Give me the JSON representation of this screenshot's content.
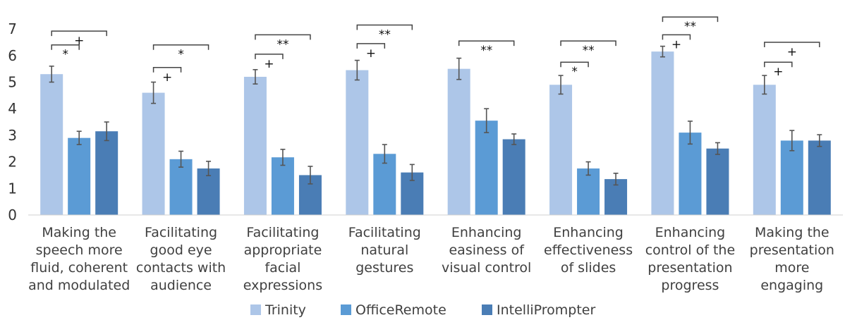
{
  "chart_data": {
    "type": "bar",
    "title": "",
    "xlabel": "",
    "ylabel": "",
    "ylim": [
      0,
      7
    ],
    "yticks": [
      0,
      1,
      2,
      3,
      4,
      5,
      6,
      7
    ],
    "grid": false,
    "legend_position": "bottom",
    "categories": [
      [
        "Making the",
        "speech more",
        "fluid, coherent",
        "and modulated"
      ],
      [
        "Facilitating",
        "good eye",
        "contacts with",
        "audience"
      ],
      [
        "Facilitating",
        "appropriate",
        "facial",
        "expressions"
      ],
      [
        "Facilitating",
        "natural",
        "gestures"
      ],
      [
        "Enhancing",
        "easiness of",
        "visual control"
      ],
      [
        "Enhancing",
        "effectiveness",
        "of slides"
      ],
      [
        "Enhancing",
        "control of the",
        "presentation",
        "progress"
      ],
      [
        "Making the",
        "presentation",
        "more",
        "engaging"
      ]
    ],
    "series": [
      {
        "name": "Trinity",
        "color": "#adc6e8",
        "values": [
          5.3,
          4.6,
          5.2,
          5.45,
          5.5,
          4.9,
          6.15,
          4.9
        ],
        "errors": [
          0.3,
          0.4,
          0.27,
          0.37,
          0.4,
          0.35,
          0.2,
          0.35
        ]
      },
      {
        "name": "OfficeRemote",
        "color": "#5b9bd5",
        "values": [
          2.9,
          2.1,
          2.17,
          2.3,
          3.55,
          1.75,
          3.1,
          2.8
        ],
        "errors": [
          0.25,
          0.3,
          0.3,
          0.35,
          0.45,
          0.25,
          0.43,
          0.38
        ]
      },
      {
        "name": "IntelliPrompter",
        "color": "#4a7db5",
        "values": [
          3.15,
          1.75,
          1.5,
          1.6,
          2.85,
          1.35,
          2.5,
          2.8
        ],
        "errors": [
          0.35,
          0.27,
          0.33,
          0.3,
          0.2,
          0.22,
          0.22,
          0.22
        ]
      }
    ],
    "significance": [
      {
        "group": 0,
        "from": 0,
        "to": 1,
        "level": 6.4,
        "label": "*"
      },
      {
        "group": 0,
        "from": 0,
        "to": 2,
        "level": 6.92,
        "label": "+"
      },
      {
        "group": 1,
        "from": 0,
        "to": 1,
        "level": 5.55,
        "label": "+"
      },
      {
        "group": 1,
        "from": 0,
        "to": 2,
        "level": 6.4,
        "label": "*"
      },
      {
        "group": 2,
        "from": 0,
        "to": 1,
        "level": 6.05,
        "label": "+"
      },
      {
        "group": 2,
        "from": 0,
        "to": 2,
        "level": 6.78,
        "label": "**"
      },
      {
        "group": 3,
        "from": 0,
        "to": 1,
        "level": 6.45,
        "label": "+"
      },
      {
        "group": 3,
        "from": 0,
        "to": 2,
        "level": 7.15,
        "label": "**"
      },
      {
        "group": 4,
        "from": 0,
        "to": 2,
        "level": 6.55,
        "label": "**"
      },
      {
        "group": 5,
        "from": 0,
        "to": 1,
        "level": 5.75,
        "label": "*"
      },
      {
        "group": 5,
        "from": 0,
        "to": 2,
        "level": 6.55,
        "label": "**"
      },
      {
        "group": 6,
        "from": 0,
        "to": 1,
        "level": 6.78,
        "label": "+"
      },
      {
        "group": 6,
        "from": 0,
        "to": 2,
        "level": 7.45,
        "label": "**"
      },
      {
        "group": 7,
        "from": 0,
        "to": 1,
        "level": 5.75,
        "label": "+"
      },
      {
        "group": 7,
        "from": 0,
        "to": 2,
        "level": 6.5,
        "label": "+"
      }
    ]
  }
}
